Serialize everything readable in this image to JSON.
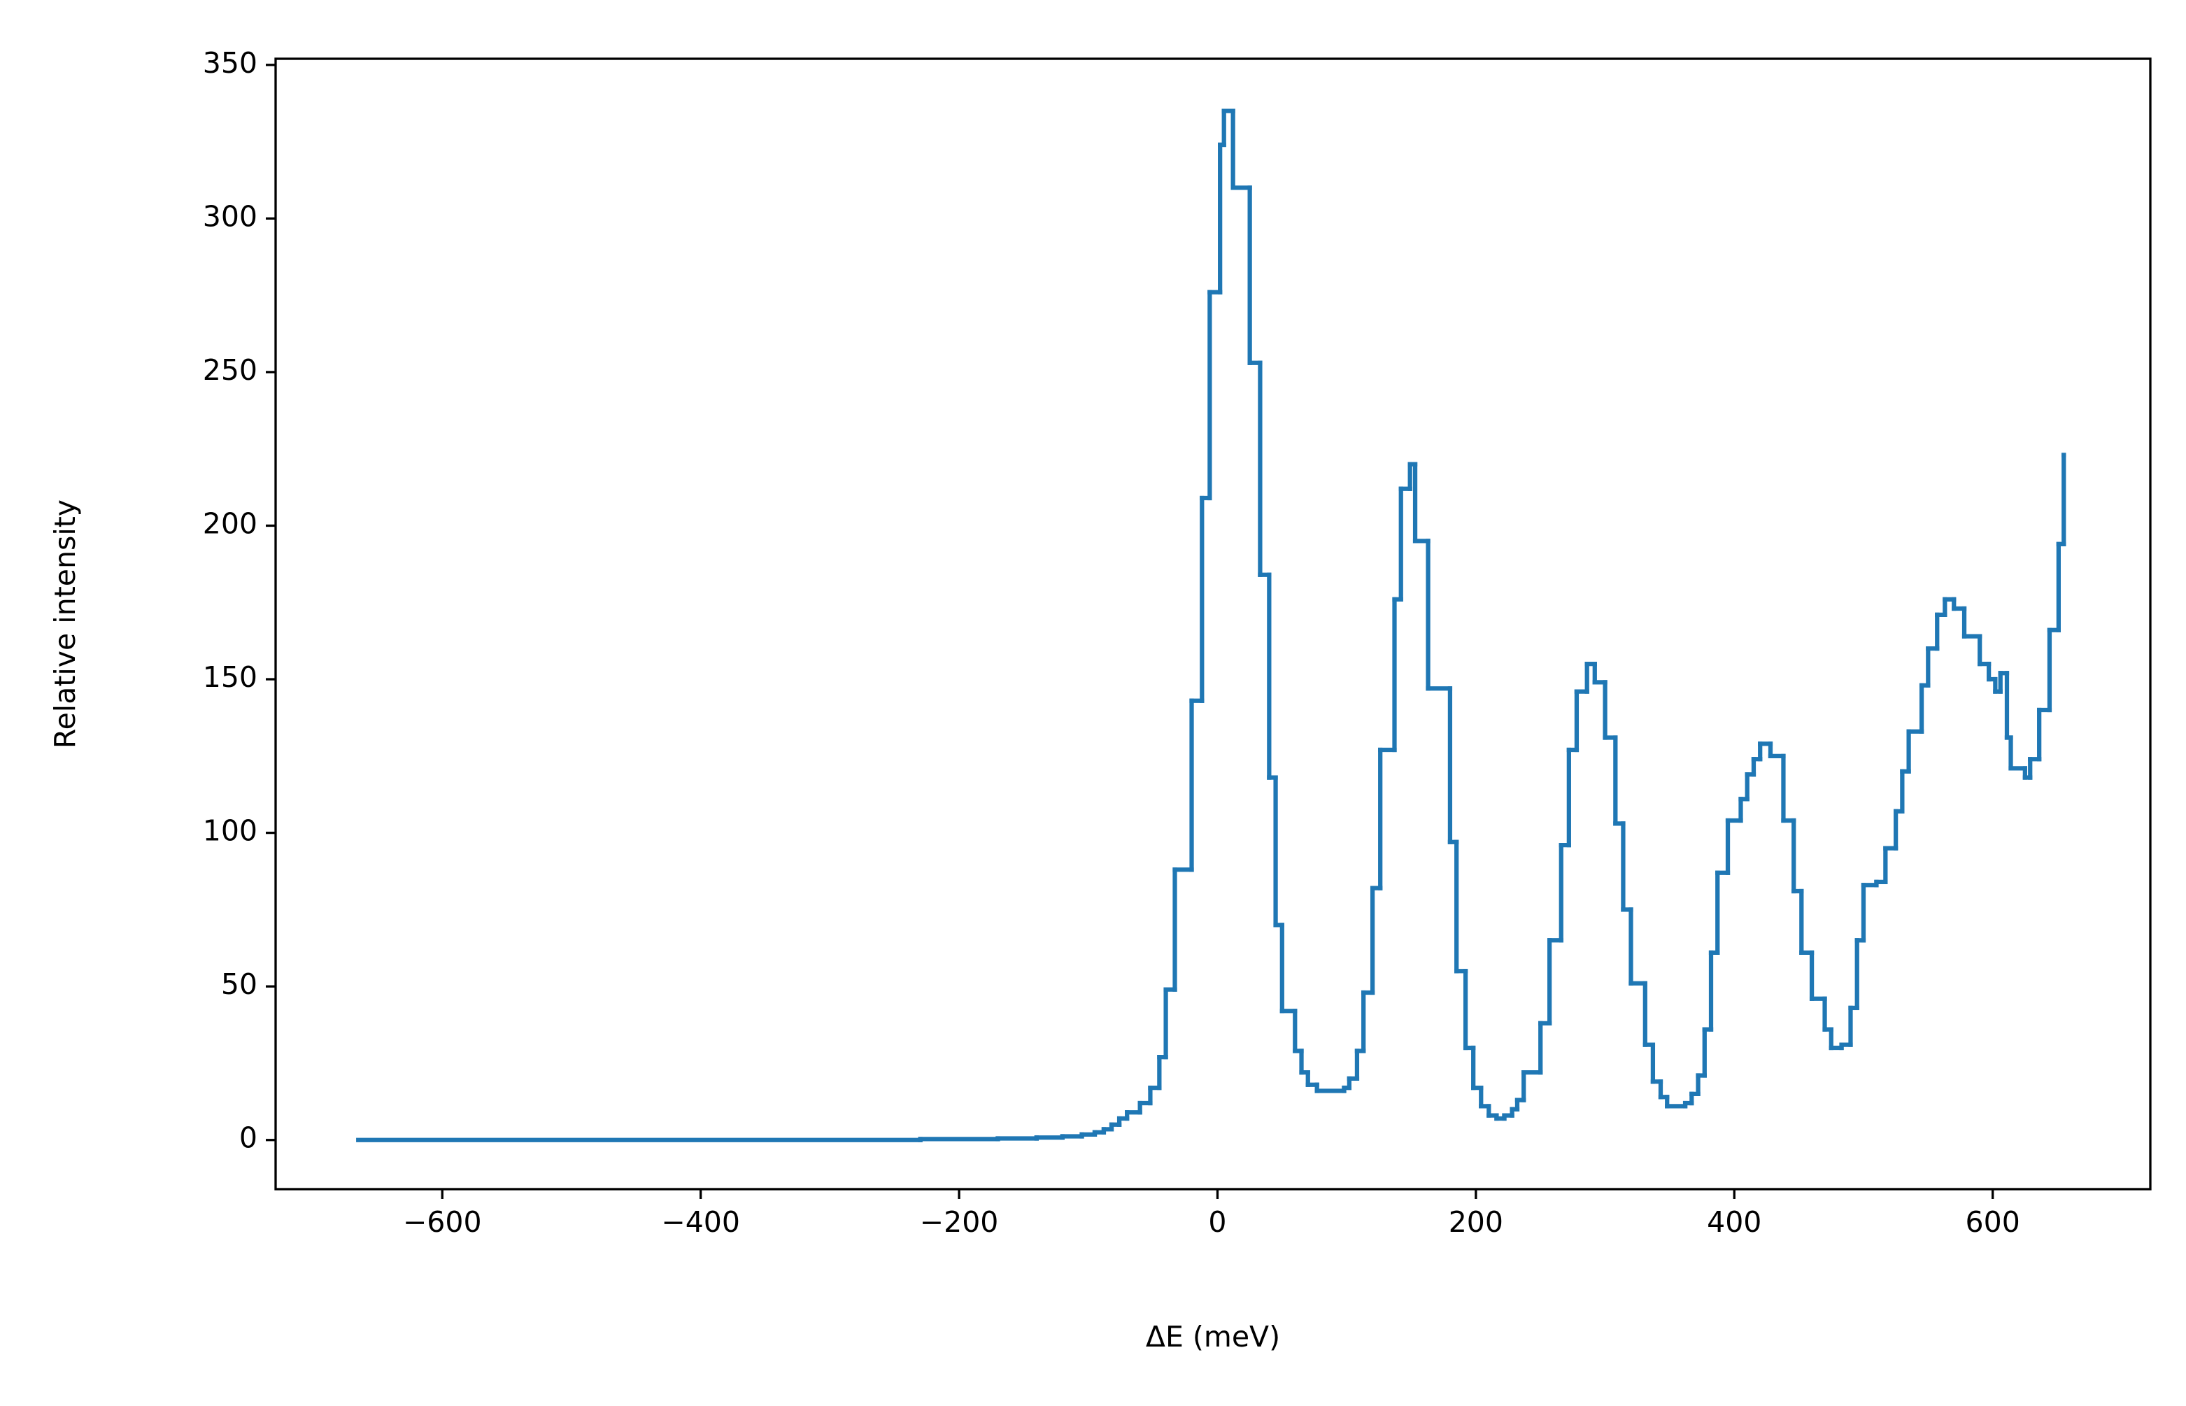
{
  "chart_data": {
    "type": "step",
    "xlabel": "ΔE (meV)",
    "ylabel": "Relative intensity",
    "x": [
      -665,
      -230,
      -170,
      -140,
      -120,
      -105,
      -95,
      -88,
      -82,
      -76,
      -70,
      -60,
      -52,
      -45,
      -40,
      -33,
      -20,
      -12,
      -6,
      2,
      5,
      12,
      25,
      33,
      40,
      45,
      50,
      60,
      65,
      70,
      77,
      98,
      102,
      108,
      113,
      120,
      126,
      137,
      142,
      149,
      153,
      163,
      180,
      185,
      192,
      198,
      204,
      210,
      216,
      222,
      228,
      232,
      237,
      250,
      257,
      266,
      272,
      278,
      286,
      292,
      300,
      308,
      314,
      320,
      331,
      337,
      343,
      348,
      362,
      367,
      372,
      377,
      382,
      387,
      395,
      405,
      410,
      415,
      420,
      428,
      438,
      446,
      452,
      460,
      470,
      475,
      483,
      490,
      495,
      500,
      510,
      517,
      525,
      530,
      535,
      545,
      550,
      557,
      563,
      570,
      578,
      590,
      597,
      602,
      606,
      611,
      614,
      625,
      629,
      636,
      644,
      651,
      655
    ],
    "values": [
      0,
      0.3,
      0.5,
      0.8,
      1.2,
      1.8,
      2.5,
      3.5,
      5,
      7,
      9,
      12,
      17,
      27,
      49,
      88,
      143,
      209,
      276,
      324,
      335,
      310,
      253,
      184,
      118,
      70,
      42,
      29,
      22,
      18,
      16,
      17,
      20,
      29,
      48,
      82,
      127,
      176,
      212,
      220,
      195,
      147,
      97,
      55,
      30,
      17,
      11,
      8,
      7,
      8,
      10,
      13,
      22,
      38,
      65,
      96,
      127,
      146,
      155,
      149,
      131,
      103,
      75,
      51,
      31,
      19,
      14,
      11,
      12,
      15,
      21,
      36,
      61,
      87,
      104,
      111,
      119,
      124,
      129,
      125,
      104,
      81,
      61,
      46,
      36,
      30,
      31,
      43,
      65,
      83,
      84,
      95,
      107,
      120,
      133,
      148,
      160,
      171,
      176,
      173,
      164,
      155,
      150,
      146,
      152,
      131,
      121,
      118,
      124,
      140,
      166,
      194,
      223
    ],
    "color": "#1f77b4",
    "xlim": [
      -729,
      722
    ],
    "ylim": [
      -16,
      352
    ],
    "xticks": [
      {
        "value": -600,
        "label": "−600"
      },
      {
        "value": -400,
        "label": "−400"
      },
      {
        "value": -200,
        "label": "−200"
      },
      0,
      200,
      400,
      600
    ],
    "yticks": [
      0,
      50,
      100,
      150,
      200,
      250,
      300,
      350
    ]
  }
}
